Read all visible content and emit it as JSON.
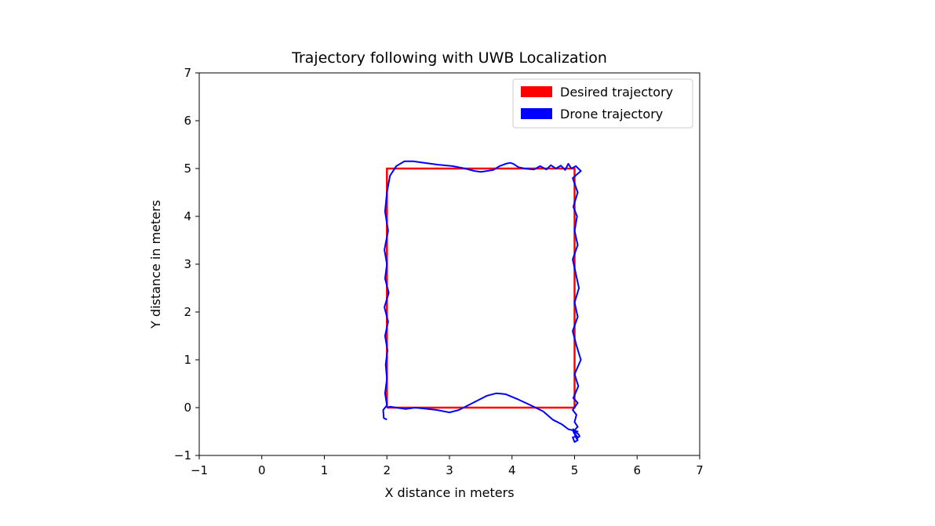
{
  "chart_data": {
    "type": "line",
    "title": "Trajectory following with UWB Localization",
    "xlabel": "X distance in meters",
    "ylabel": "Y distance in meters",
    "xlim": [
      -1,
      7
    ],
    "ylim": [
      -1,
      7
    ],
    "xticks": [
      "−1",
      "0",
      "1",
      "2",
      "3",
      "4",
      "5",
      "6",
      "7"
    ],
    "yticks": [
      "−1",
      "0",
      "1",
      "2",
      "3",
      "4",
      "5",
      "6",
      "7"
    ],
    "grid": false,
    "legend_position": "top-right",
    "series": [
      {
        "name": "Desired trajectory",
        "color": "#ff0000",
        "x": [
          2.0,
          2.0,
          5.0,
          5.0,
          2.0
        ],
        "y": [
          0.0,
          5.0,
          5.0,
          0.0,
          0.0
        ]
      },
      {
        "name": "Drone trajectory",
        "color": "#0000ff",
        "x": [
          2.0,
          1.95,
          1.94,
          2.0,
          1.97,
          2.0,
          1.98,
          2.01,
          1.97,
          2.02,
          1.96,
          2.03,
          1.97,
          2.0,
          1.96,
          2.02,
          1.97,
          2.0,
          2.05,
          2.15,
          2.28,
          2.42,
          2.6,
          2.82,
          3.05,
          3.25,
          3.4,
          3.5,
          3.6,
          3.7,
          3.8,
          3.9,
          3.97,
          4.02,
          4.1,
          4.2,
          4.35,
          4.45,
          4.55,
          4.62,
          4.7,
          4.78,
          4.85,
          4.9,
          4.95,
          5.02,
          5.1,
          4.97,
          5.05,
          4.98,
          5.04,
          5.0,
          5.05,
          4.97,
          5.02,
          5.07,
          5.0,
          5.05,
          4.97,
          5.03,
          5.1,
          5.0,
          5.06,
          4.98,
          5.05,
          4.97,
          5.03,
          5.0,
          5.05,
          4.98,
          5.02,
          5.05,
          5.0,
          4.97,
          5.04,
          5.0,
          4.98,
          5.03,
          5.08,
          5.06,
          4.98,
          5.05,
          4.9,
          4.8,
          4.65,
          4.5,
          4.3,
          4.1,
          3.9,
          3.75,
          3.6,
          3.45,
          3.3,
          3.15,
          3.0,
          2.8,
          2.6,
          2.45,
          2.3,
          2.15,
          2.05,
          2.0
        ],
        "y": [
          -0.25,
          -0.22,
          -0.05,
          0.05,
          0.3,
          0.6,
          0.9,
          1.2,
          1.5,
          1.8,
          2.1,
          2.4,
          2.7,
          3.0,
          3.3,
          3.7,
          4.1,
          4.5,
          4.85,
          5.05,
          5.15,
          5.15,
          5.12,
          5.08,
          5.05,
          5.0,
          4.95,
          4.93,
          4.95,
          4.97,
          5.05,
          5.1,
          5.12,
          5.1,
          5.03,
          5.0,
          4.98,
          5.05,
          4.98,
          5.07,
          5.0,
          5.06,
          4.97,
          5.1,
          5.0,
          5.05,
          4.95,
          4.8,
          4.5,
          4.2,
          4.0,
          3.7,
          3.4,
          3.1,
          2.8,
          2.5,
          2.2,
          1.9,
          1.6,
          1.3,
          1.0,
          0.7,
          0.45,
          0.2,
          0.1,
          -0.05,
          -0.15,
          -0.3,
          -0.4,
          -0.5,
          -0.6,
          -0.68,
          -0.72,
          -0.62,
          -0.6,
          -0.55,
          -0.45,
          -0.65,
          -0.6,
          -0.55,
          -0.5,
          -0.5,
          -0.45,
          -0.35,
          -0.25,
          -0.08,
          0.05,
          0.17,
          0.28,
          0.3,
          0.25,
          0.15,
          0.05,
          -0.05,
          -0.1,
          -0.05,
          -0.02,
          0.0,
          -0.03,
          0.0,
          0.02,
          0.0
        ]
      }
    ]
  }
}
